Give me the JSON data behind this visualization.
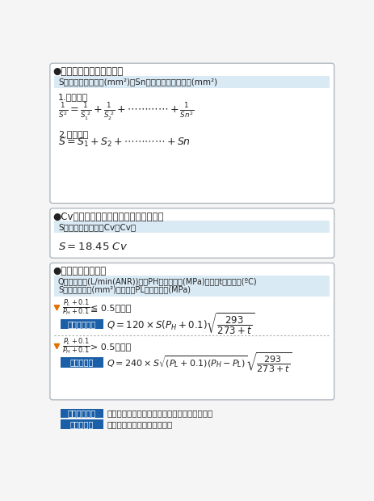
{
  "bg_color": "#f5f5f5",
  "border_color": "#b0b8c0",
  "light_blue_bg": "#daeaf5",
  "blue_btn_color": "#1a5fa8",
  "triangle_color": "#e07000",
  "text_color": "#222222",
  "formula_color": "#222222",
  "section1_title": "●合成有効断面積の求め方",
  "section2_title": "●Cv値からの合値成有効断面積の求め方",
  "section3_title": "●エア流量の求め方",
  "s1_info": "S：合成有効断面積(mm²)　Sn：個々の有効断面積(mm²)",
  "s1_sub1": "1.直列接続",
  "s1_sub2": "2.並列接続",
  "s2_info": "S：有効断面積　　Cv：Cv値",
  "s3_line1": "Q：空気流量(L/min(ANR))　　PH：上流圧力(MPa)　　　t　：温度(ºC)",
  "s3_line2": "S：有効断面積(mm²)　　　　PL：下流圧力(MPa)",
  "cond1_text": "≦ 0.5のとき",
  "cond2_text": "> 0.5のとき",
  "btn1": "チョーク流れ",
  "btn2": "亜音速流れ",
  "legend1_text": "機器を流れる流量の最大値。　（＝音速流れ）",
  "legend2_text": "チョーク流れに達しない値。"
}
